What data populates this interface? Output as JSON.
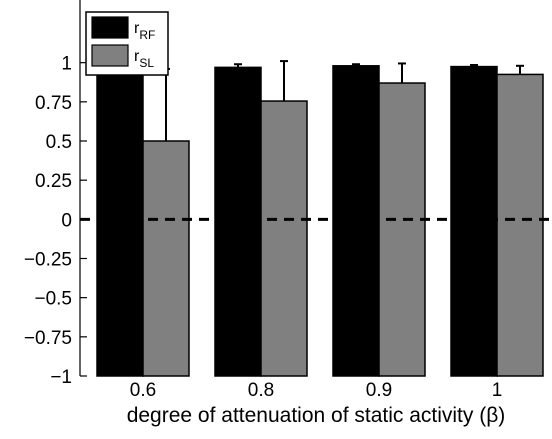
{
  "chart_data": {
    "type": "bar",
    "title": "",
    "xlabel": "degree of attenuation of static activity (β)",
    "ylabel": "",
    "categories": [
      "0.6",
      "0.8",
      "0.9",
      "1"
    ],
    "ylim": [
      -1,
      1.4
    ],
    "yticks": [
      "−1",
      "−0.75",
      "−0.5",
      "−0.25",
      "0",
      "0.25",
      "0.5",
      "0.75",
      "1"
    ],
    "series": [
      {
        "name_main": "r",
        "name_sub": "RF",
        "color": "#000000",
        "values": [
          0.945,
          0.97,
          0.98,
          0.975
        ],
        "errors": [
          0.03,
          0.02,
          0.01,
          0.01
        ]
      },
      {
        "name_main": "r",
        "name_sub": "SL",
        "color": "#808080",
        "values": [
          0.5,
          0.755,
          0.87,
          0.925
        ],
        "errors": [
          0.46,
          0.255,
          0.125,
          0.055
        ]
      }
    ],
    "reference_line": {
      "y": 0,
      "style": "dashed"
    },
    "legend_position": "top-left",
    "grid": false
  }
}
